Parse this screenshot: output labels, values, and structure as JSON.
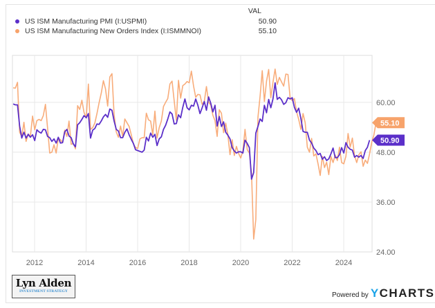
{
  "chart_data": {
    "type": "line",
    "title": "",
    "xlabel": "",
    "ylabel": "",
    "xlim": [
      2011.14,
      2025.1
    ],
    "ylim": [
      24,
      71.3
    ],
    "y_ticks": [
      24,
      36,
      48,
      60
    ],
    "y_tick_labels": [
      "24.00",
      "36.00",
      "48.00",
      "60.00"
    ],
    "x_ticks": [
      2012,
      2014,
      2016,
      2018,
      2020,
      2022,
      2024
    ],
    "x_tick_labels": [
      "2012",
      "2014",
      "2016",
      "2018",
      "2020",
      "2022",
      "2024"
    ],
    "grid": true,
    "legend_position": "top-left",
    "value_column_header": "VAL",
    "x_start": 2011.17,
    "x_step": 0.08333,
    "series": [
      {
        "name": "US ISM Manufacturing PMI (I:USPMI)",
        "color": "#5b2fc9",
        "last_value": 50.9,
        "last_label": "50.90",
        "values": [
          59.6,
          59.4,
          59.4,
          54.3,
          51.4,
          52.8,
          51.4,
          52.3,
          51.6,
          52.2,
          50.8,
          53.4,
          52.9,
          52.6,
          53.5,
          53.4,
          51.8,
          51.5,
          50.6,
          51.2,
          50.2,
          51.6,
          50.2,
          50.3,
          52.9,
          53.5,
          51.9,
          51.5,
          50.0,
          49.3,
          54.6,
          55.1,
          55.9,
          56.8,
          56.3,
          57.3,
          51.4,
          53.3,
          53.7,
          54.8,
          54.7,
          55.5,
          56.5,
          57.1,
          56.4,
          58.4,
          58.1,
          55.5,
          53.5,
          53.1,
          51.5,
          51.5,
          52.8,
          53.6,
          52.2,
          51.1,
          50.1,
          48.6,
          48.4,
          48.2,
          48.0,
          48.5,
          51.6,
          50.7,
          52.6,
          51.6,
          52.3,
          49.6,
          51.2,
          51.7,
          53.5,
          54.5,
          56.0,
          57.7,
          57.2,
          54.8,
          54.9,
          57.0,
          56.3,
          58.8,
          60.8,
          58.7,
          58.2,
          59.3,
          59.1,
          60.8,
          59.3,
          57.3,
          58.7,
          60.2,
          58.1,
          61.3,
          59.8,
          57.7,
          59.3,
          54.3,
          56.6,
          54.2,
          55.3,
          52.8,
          52.1,
          51.2,
          49.1,
          48.3,
          47.8,
          48.1,
          48.1,
          47.8,
          50.9,
          50.1,
          49.1,
          41.5,
          43.1,
          52.6,
          54.2,
          56.0,
          55.4,
          59.3,
          57.5,
          60.7,
          58.7,
          60.8,
          64.7,
          60.7,
          61.2,
          60.6,
          59.5,
          59.9,
          61.1,
          60.8,
          61.1,
          58.8,
          57.6,
          58.6,
          56.1,
          53.0,
          52.8,
          52.8,
          50.9,
          50.2,
          49.0,
          48.4,
          47.4,
          47.7,
          46.3,
          46.9,
          46.0,
          46.4,
          47.6,
          49.0,
          46.7,
          46.7,
          47.4,
          49.1,
          47.8,
          50.3,
          49.2,
          48.7,
          48.5,
          46.8,
          47.2,
          46.8,
          47.2,
          46.5,
          48.4,
          49.2,
          50.9
        ]
      },
      {
        "name": "US ISM Manufacturing New Orders Index (I:ISMMNOI)",
        "color": "#f7a36b",
        "last_value": 55.1,
        "last_label": "55.10",
        "values": [
          63.5,
          63.4,
          64.8,
          52.8,
          51.8,
          55.2,
          50.6,
          52.4,
          51.8,
          56.7,
          53.4,
          55.6,
          55.9,
          55.6,
          56.8,
          59.5,
          53.8,
          47.8,
          48.0,
          49.8,
          47.8,
          51.4,
          51.0,
          50.3,
          53.3,
          51.8,
          55.5,
          49.9,
          50.1,
          48.8,
          59.2,
          58.3,
          60.5,
          57.6,
          56.2,
          64.4,
          53.5,
          53.9,
          55.0,
          57.3,
          59.9,
          62.2,
          65.2,
          63.2,
          59.1,
          66.1,
          66.9,
          57.0,
          52.9,
          51.6,
          54.3,
          51.8,
          56.0,
          55.1,
          54.2,
          52.2,
          50.0,
          49.1,
          48.9,
          51.2,
          51.5,
          51.5,
          57.4,
          55.8,
          55.5,
          52.2,
          57.9,
          51.4,
          53.9,
          55.5,
          59.0,
          60.0,
          60.9,
          64.4,
          65.1,
          60.3,
          55.7,
          65.3,
          61.0,
          64.0,
          64.4,
          65.0,
          64.7,
          67.5,
          63.9,
          61.2,
          61.9,
          61.8,
          59.5,
          60.2,
          63.8,
          60.0,
          59.4,
          56.9,
          55.6,
          51.8,
          58.2,
          57.4,
          52.7,
          55.0,
          52.2,
          47.4,
          51.0,
          47.2,
          49.4,
          47.7,
          46.6,
          48.3,
          53.5,
          48.6,
          47.8,
          42.9,
          27.1,
          31.8,
          56.4,
          61.5,
          67.6,
          60.2,
          65.1,
          67.9,
          61.1,
          64.8,
          68.0,
          64.3,
          66.0,
          64.9,
          63.9,
          66.8,
          66.7,
          61.1,
          60.4,
          60.9,
          57.8,
          55.9,
          53.5,
          57.3,
          55.1,
          49.2,
          48.0,
          51.3,
          47.1,
          47.6,
          45.2,
          42.4,
          47.0,
          44.3,
          45.6,
          42.6,
          47.0,
          45.5,
          47.3,
          46.0,
          49.2,
          45.5,
          45.2,
          47.0,
          52.5,
          49.2,
          51.4,
          47.1,
          45.5,
          47.4,
          48.1,
          44.6,
          46.1,
          45.3,
          47.6,
          50.4,
          52.1,
          55.1
        ]
      }
    ]
  },
  "legend": {
    "header": "VAL",
    "items": [
      {
        "label": "US ISM Manufacturing PMI (I:USPMI)",
        "value": "50.90",
        "color": "#5b2fc9"
      },
      {
        "label": "US ISM Manufacturing New Orders Index (I:ISMMNOI)",
        "value": "55.10",
        "color": "#f7a36b"
      }
    ]
  },
  "branding": {
    "logo_main": "Lyn Alden",
    "logo_sub": "INVESTMENT STRATEGY",
    "powered_by": "Powered by",
    "ycharts_y": "Y",
    "ycharts_rest": "CHARTS"
  }
}
